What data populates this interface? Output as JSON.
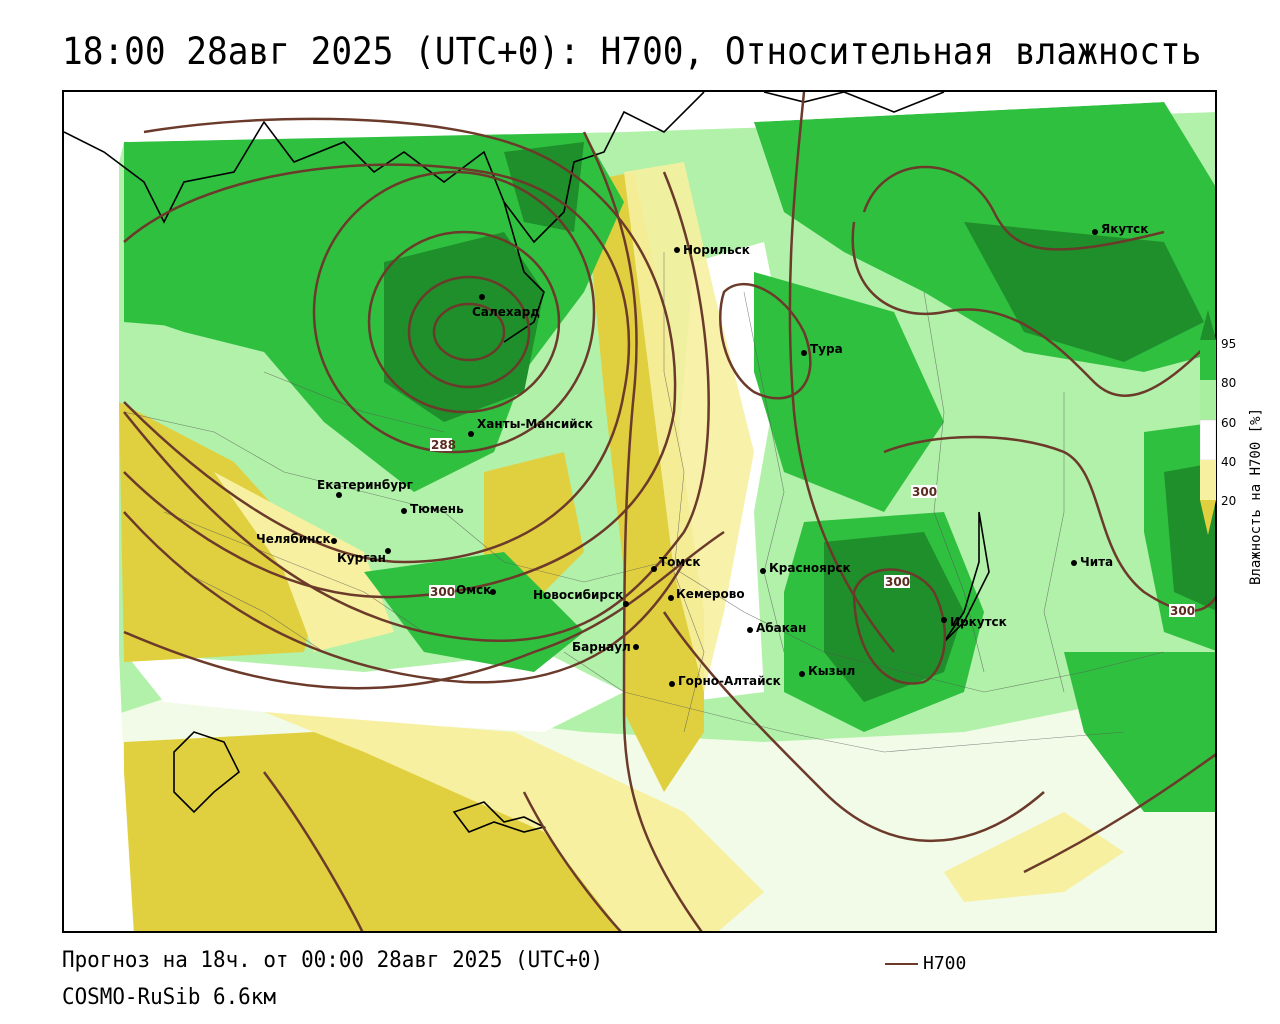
{
  "title": "18:00 28авг 2025 (UTC+0): H700, Относительная влажность",
  "footer": {
    "forecast": "Прогноз на 18ч. от 00:00 28авг 2025 (UTC+0)",
    "model": "COSMO-RuSib 6.6км"
  },
  "legend": {
    "line_label": "H700",
    "line_color": "#6b3a2a"
  },
  "colorbar": {
    "title": "Влажность на H700 [%]",
    "ticks": [
      "95",
      "80",
      "60",
      "40",
      "20"
    ],
    "colors": {
      "dark_green": "#1e8f2a",
      "green": "#30c040",
      "light_green": "#a8f0a0",
      "white": "#ffffff",
      "light_yellow": "#f7f0a0",
      "yellow": "#e0d040",
      "contour": "#6b3a2a"
    }
  },
  "map": {
    "cities": [
      {
        "name": "Норильск"
      },
      {
        "name": "Салехард"
      },
      {
        "name": "Якутск"
      },
      {
        "name": "Тура"
      },
      {
        "name": "Ханты-Мансийск"
      },
      {
        "name": "Екатеринбург"
      },
      {
        "name": "Тюмень"
      },
      {
        "name": "Челябинск"
      },
      {
        "name": "Курган"
      },
      {
        "name": "Омск"
      },
      {
        "name": "Новосибирск"
      },
      {
        "name": "Томск"
      },
      {
        "name": "Кемерово"
      },
      {
        "name": "Красноярск"
      },
      {
        "name": "Барнаул"
      },
      {
        "name": "Абакан"
      },
      {
        "name": "Иркутск"
      },
      {
        "name": "Чита"
      },
      {
        "name": "Кызыл"
      },
      {
        "name": "Горно-Алтайск"
      }
    ],
    "isoline_labels": [
      "288",
      "300",
      "300",
      "300",
      "300"
    ]
  }
}
